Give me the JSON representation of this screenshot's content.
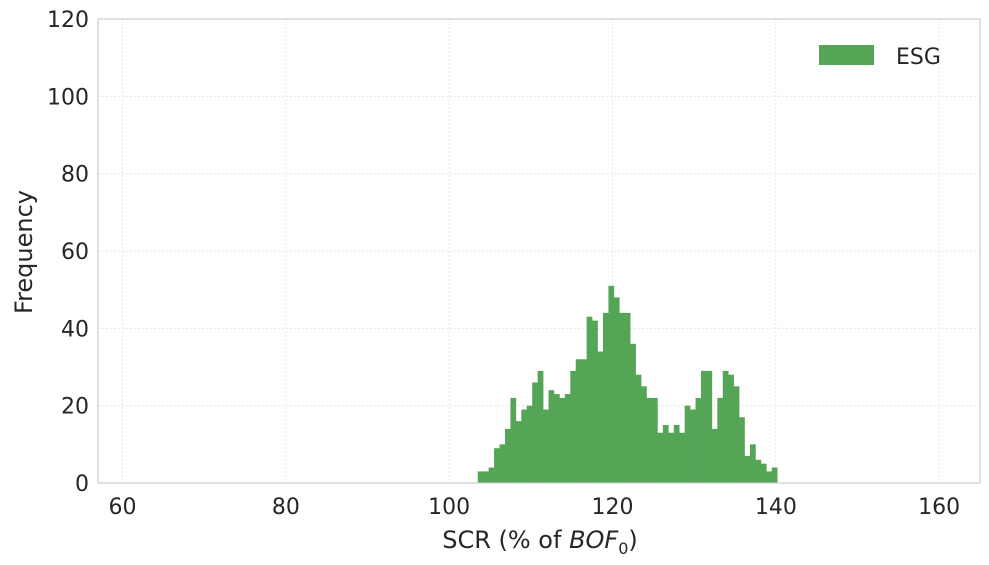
{
  "chart_data": {
    "type": "bar",
    "subtype": "histogram",
    "title": "",
    "xlabel": "SCR (% of BOF0)",
    "xlabel_parts": {
      "main": "SCR (% of ",
      "italic": "BOF",
      "subscript": "0",
      "close": ")"
    },
    "ylabel": "Frequency",
    "xlim": [
      57,
      165
    ],
    "ylim": [
      0,
      120
    ],
    "xticks": [
      60,
      80,
      100,
      120,
      140,
      160
    ],
    "yticks": [
      0,
      20,
      40,
      60,
      80,
      100,
      120
    ],
    "grid": true,
    "legend_position": "top-right",
    "bin_start": 103.5,
    "bin_width": 0.6667,
    "series": [
      {
        "name": "ESG",
        "color": "#55a557",
        "values": [
          3,
          3,
          4,
          9,
          10,
          14,
          22,
          16,
          19,
          20,
          26,
          29,
          19,
          24,
          23,
          22,
          23,
          29,
          32,
          32,
          43,
          42,
          34,
          44,
          51,
          48,
          44,
          44,
          36,
          28,
          25,
          22,
          22,
          13,
          15,
          13,
          15,
          13,
          20,
          19,
          22,
          29,
          29,
          14,
          22,
          29,
          28,
          25,
          17,
          7,
          10,
          6,
          5,
          3,
          4
        ]
      }
    ]
  }
}
